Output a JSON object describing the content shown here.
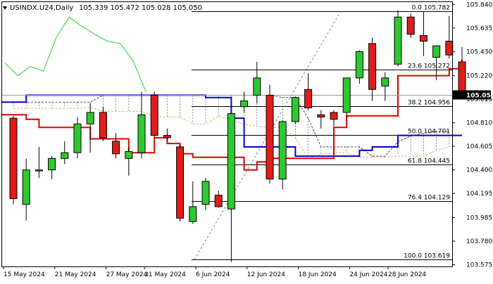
{
  "chart_data": {
    "type": "candlestick",
    "symbol_label": "USINDX.U24,Daily",
    "ohlc_label": "105.339 105.472 105.028 105.050",
    "current_price_label": "105.050",
    "ylim": [
      103.56,
      105.86
    ],
    "x_ticks": [
      "15 May 2024",
      "21 May 2024",
      "27 May 2024",
      "31 May 2024",
      "6 Jun 2024",
      "12 Jun 2024",
      "18 Jun 2024",
      "24 Jun 2024",
      "28 Jun 2024"
    ],
    "y_ticks": [
      "105.840",
      "105.635",
      "105.430",
      "105.220",
      "105.015",
      "104.810",
      "104.605",
      "104.400",
      "104.195",
      "103.985",
      "103.780",
      "103.575"
    ],
    "fib_levels": [
      {
        "label": "0.0 105.782",
        "value": 105.782
      },
      {
        "label": "23.6 105.272",
        "value": 105.272
      },
      {
        "label": "38.2 104.956",
        "value": 104.956
      },
      {
        "label": "50.0 104.701",
        "value": 104.701
      },
      {
        "label": "61.8 104.445",
        "value": 104.445
      },
      {
        "label": "76.4 104.129",
        "value": 104.129
      },
      {
        "label": "100.0 103.619",
        "value": 103.619
      }
    ],
    "candles": [
      {
        "o": 104.85,
        "h": 104.87,
        "l": 104.1,
        "c": 104.15
      },
      {
        "o": 104.1,
        "h": 104.5,
        "l": 103.96,
        "c": 104.4
      },
      {
        "o": 104.4,
        "h": 104.6,
        "l": 104.33,
        "c": 104.4
      },
      {
        "o": 104.4,
        "h": 104.52,
        "l": 104.32,
        "c": 104.5
      },
      {
        "o": 104.5,
        "h": 104.65,
        "l": 104.45,
        "c": 104.55
      },
      {
        "o": 104.55,
        "h": 104.86,
        "l": 104.5,
        "c": 104.8
      },
      {
        "o": 104.8,
        "h": 104.98,
        "l": 104.55,
        "c": 104.9
      },
      {
        "o": 104.9,
        "h": 104.95,
        "l": 104.65,
        "c": 104.68
      },
      {
        "o": 104.65,
        "h": 104.72,
        "l": 104.5,
        "c": 104.54
      },
      {
        "o": 104.5,
        "h": 104.6,
        "l": 104.35,
        "c": 104.56
      },
      {
        "o": 104.55,
        "h": 105.08,
        "l": 104.5,
        "c": 104.88
      },
      {
        "o": 105.05,
        "h": 105.08,
        "l": 104.68,
        "c": 104.7
      },
      {
        "o": 104.7,
        "h": 104.76,
        "l": 104.65,
        "c": 104.68
      },
      {
        "o": 104.6,
        "h": 104.62,
        "l": 103.95,
        "c": 103.98
      },
      {
        "o": 103.95,
        "h": 104.3,
        "l": 103.93,
        "c": 104.08
      },
      {
        "o": 104.1,
        "h": 104.33,
        "l": 104.05,
        "c": 104.3
      },
      {
        "o": 104.18,
        "h": 104.22,
        "l": 104.07,
        "c": 104.08
      },
      {
        "o": 104.06,
        "h": 104.88,
        "l": 103.6,
        "c": 104.89
      },
      {
        "o": 104.95,
        "h": 105.08,
        "l": 104.9,
        "c": 105.0
      },
      {
        "o": 105.05,
        "h": 105.34,
        "l": 104.98,
        "c": 105.2
      },
      {
        "o": 105.05,
        "h": 105.14,
        "l": 104.28,
        "c": 104.32
      },
      {
        "o": 104.32,
        "h": 104.83,
        "l": 104.23,
        "c": 104.82
      },
      {
        "o": 104.82,
        "h": 105.04,
        "l": 104.8,
        "c": 105.03
      },
      {
        "o": 105.1,
        "h": 105.24,
        "l": 104.92,
        "c": 104.94
      },
      {
        "o": 104.88,
        "h": 104.92,
        "l": 104.76,
        "c": 104.86
      },
      {
        "o": 104.9,
        "h": 104.92,
        "l": 104.78,
        "c": 104.84
      },
      {
        "o": 104.9,
        "h": 105.2,
        "l": 104.85,
        "c": 105.2
      },
      {
        "o": 105.2,
        "h": 105.44,
        "l": 105.15,
        "c": 105.43
      },
      {
        "o": 105.5,
        "h": 105.55,
        "l": 105.0,
        "c": 105.1
      },
      {
        "o": 105.13,
        "h": 105.25,
        "l": 105.0,
        "c": 105.2
      },
      {
        "o": 105.32,
        "h": 105.79,
        "l": 105.3,
        "c": 105.73
      },
      {
        "o": 105.73,
        "h": 105.76,
        "l": 105.55,
        "c": 105.58
      },
      {
        "o": 105.57,
        "h": 105.78,
        "l": 105.39,
        "c": 105.52
      },
      {
        "o": 105.38,
        "h": 105.48,
        "l": 105.18,
        "c": 105.48
      },
      {
        "o": 105.52,
        "h": 105.74,
        "l": 105.37,
        "c": 105.4
      },
      {
        "o": 105.34,
        "h": 105.47,
        "l": 105.03,
        "c": 105.05
      }
    ],
    "tenkan_sen": [
      104.88,
      104.84,
      104.77,
      104.77,
      104.77,
      104.77,
      104.67,
      104.67,
      104.67,
      104.55,
      104.55,
      104.68,
      104.63,
      104.54,
      104.51,
      104.51,
      104.51,
      104.51,
      104.4,
      104.47,
      104.5,
      104.5,
      104.5,
      104.5,
      104.5,
      104.77,
      104.87,
      104.87,
      104.87,
      104.87,
      105.22,
      105.22,
      105.22,
      105.22,
      105.28,
      105.36
    ],
    "kijun_sen": [
      104.99,
      105.05,
      105.05,
      105.05,
      105.05,
      105.05,
      105.05,
      105.05,
      105.05,
      105.05,
      105.05,
      105.05,
      105.05,
      105.05,
      105.05,
      105.03,
      105.03,
      104.85,
      104.6,
      104.6,
      104.6,
      104.6,
      104.52,
      104.52,
      104.52,
      104.52,
      104.52,
      104.57,
      104.6,
      104.6,
      104.7,
      104.7,
      104.7,
      104.7,
      104.7,
      104.7
    ],
    "chikou_span": [
      105.33,
      105.22,
      105.3,
      105.26,
      105.55,
      105.73,
      105.65,
      105.58,
      105.52,
      105.5,
      105.35,
      105.08
    ]
  }
}
